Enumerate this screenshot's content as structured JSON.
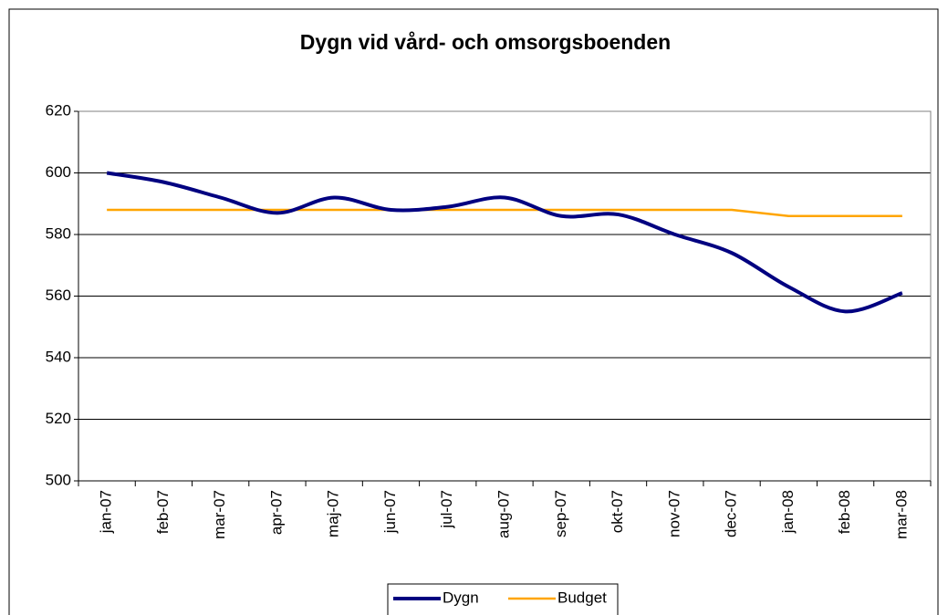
{
  "chart_data": {
    "type": "line",
    "title": "Dygn vid vård- och omsorgsboenden",
    "categories": [
      "jan-07",
      "feb-07",
      "mar-07",
      "apr-07",
      "maj-07",
      "jun-07",
      "jul-07",
      "aug-07",
      "sep-07",
      "okt-07",
      "nov-07",
      "dec-07",
      "jan-08",
      "feb-08",
      "mar-08"
    ],
    "series": [
      {
        "name": "Dygn",
        "color": "#000080",
        "values": [
          600,
          597,
          592,
          587,
          592,
          588,
          589,
          592,
          586,
          586.5,
          580,
          574,
          563,
          555,
          561
        ]
      },
      {
        "name": "Budget",
        "color": "#ffa500",
        "values": [
          588,
          588,
          588,
          588,
          588,
          588,
          588,
          588,
          588,
          588,
          588,
          588,
          586,
          586,
          586
        ]
      }
    ],
    "ylim": [
      500,
      620
    ],
    "yticks": [
      500,
      520,
      540,
      560,
      580,
      600,
      620
    ],
    "grid": true,
    "legend": "bottom"
  }
}
